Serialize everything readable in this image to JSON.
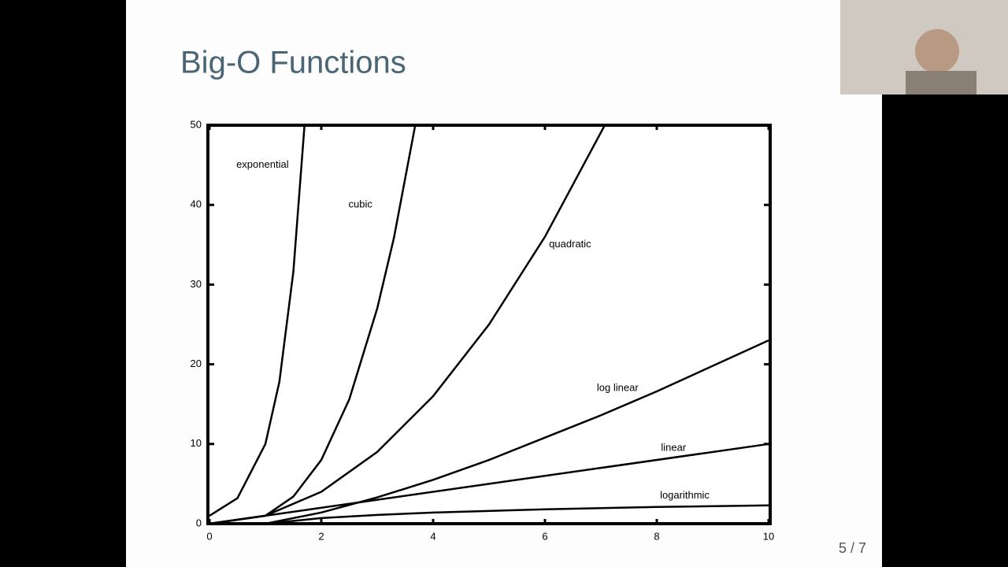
{
  "slide": {
    "page": "5 / 7"
  },
  "chart_data": {
    "type": "line",
    "title": "Big-O Functions",
    "xlim": [
      0,
      10
    ],
    "xticks": [
      0,
      2,
      4,
      6,
      8,
      10
    ],
    "ylim": [
      0,
      50
    ],
    "yticks": [
      0,
      10,
      20,
      30,
      40,
      50
    ],
    "color": "#000000",
    "series": [
      {
        "name": "exponential",
        "x": [
          0,
          0.5,
          1,
          1.25,
          1.5,
          1.7
        ],
        "values": [
          1,
          3.2,
          10,
          17.8,
          31.6,
          50
        ]
      },
      {
        "name": "cubic",
        "x": [
          0,
          1,
          1.5,
          2,
          2.5,
          3,
          3.3,
          3.68
        ],
        "values": [
          0,
          1,
          3.4,
          8,
          15.6,
          27,
          35.9,
          50
        ]
      },
      {
        "name": "quadratic",
        "x": [
          0,
          1,
          2,
          3,
          4,
          5,
          6,
          7.07
        ],
        "values": [
          0,
          1,
          4,
          9,
          16,
          25,
          36,
          50
        ]
      },
      {
        "name": "log linear",
        "x": [
          1,
          2,
          3,
          4,
          5,
          6,
          7,
          8,
          9,
          10
        ],
        "values": [
          0,
          1.4,
          3.3,
          5.5,
          8,
          10.8,
          13.6,
          16.6,
          19.8,
          23
        ]
      },
      {
        "name": "linear",
        "x": [
          0,
          10
        ],
        "values": [
          0,
          10
        ]
      },
      {
        "name": "logarithmic",
        "x": [
          1,
          2,
          3,
          4,
          6,
          8,
          10
        ],
        "values": [
          0,
          0.7,
          1.1,
          1.4,
          1.8,
          2.1,
          2.3
        ]
      }
    ]
  }
}
